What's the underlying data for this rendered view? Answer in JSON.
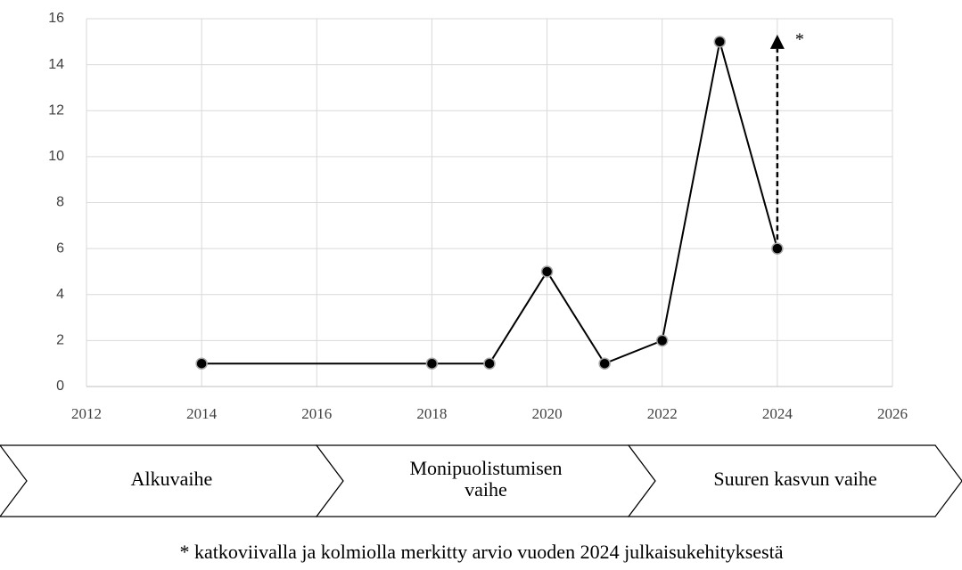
{
  "chart_data": {
    "type": "line",
    "x": [
      2014,
      2018,
      2019,
      2020,
      2021,
      2022,
      2023,
      2024
    ],
    "series": [
      {
        "color": "#000000",
        "values": [
          1,
          1,
          1,
          5,
          1,
          2,
          15,
          6
        ]
      }
    ],
    "xlim": [
      2012,
      2026
    ],
    "xticks": [
      2012,
      2014,
      2016,
      2018,
      2020,
      2022,
      2024,
      2026
    ],
    "ylim": [
      0,
      16
    ],
    "yticks": [
      0,
      2,
      4,
      6,
      8,
      10,
      12,
      14,
      16
    ],
    "grid": true,
    "estimate": {
      "x": 2024,
      "value": 15,
      "label": "*"
    }
  },
  "phases": [
    [
      "Alkuvaihe"
    ],
    [
      "Monipuolistumisen",
      "vaihe"
    ],
    [
      "Suuren kasvun vaihe"
    ]
  ],
  "footnote": "* katkoviivalla ja kolmiolla merkitty arvio vuoden 2024 julkaisukehityksestä"
}
